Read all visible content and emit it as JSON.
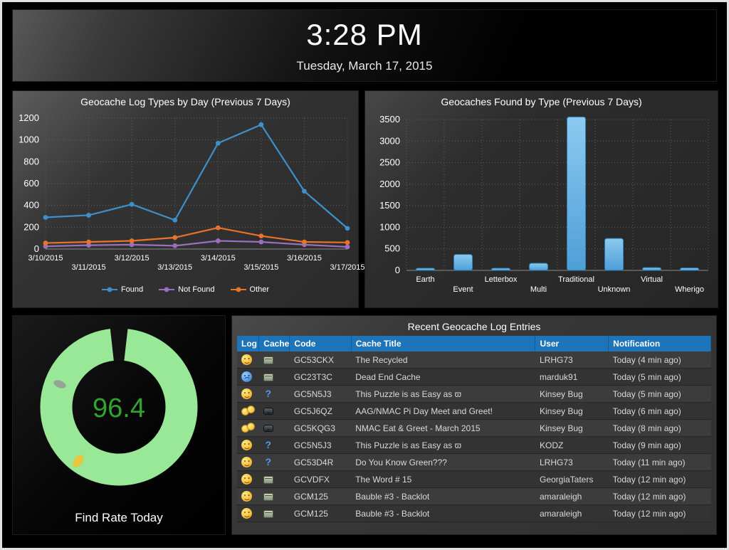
{
  "header": {
    "time": "3:28 PM",
    "date": "Tuesday, March 17, 2015"
  },
  "chart_data": [
    {
      "id": "log_types",
      "type": "line",
      "title": "Geocache Log Types by Day (Previous 7 Days)",
      "categories": [
        "3/10/2015",
        "3/11/2015",
        "3/12/2015",
        "3/13/2015",
        "3/14/2015",
        "3/15/2015",
        "3/16/2015",
        "3/17/2015"
      ],
      "series": [
        {
          "name": "Found",
          "color": "#3f8fc9",
          "values": [
            290,
            310,
            410,
            265,
            970,
            1140,
            530,
            190
          ]
        },
        {
          "name": "Not Found",
          "color": "#9a6fc0",
          "values": [
            25,
            35,
            40,
            30,
            75,
            65,
            40,
            20
          ]
        },
        {
          "name": "Other",
          "color": "#e8742a",
          "values": [
            55,
            65,
            75,
            105,
            195,
            120,
            65,
            60
          ]
        }
      ],
      "ylim": [
        0,
        1200
      ],
      "ytick": 200,
      "grid": true,
      "legend_position": "bottom"
    },
    {
      "id": "found_by_type",
      "type": "bar",
      "title": "Geocaches Found by Type (Previous 7 Days)",
      "categories": [
        "Earth",
        "Event",
        "Letterbox",
        "Multi",
        "Traditional",
        "Unknown",
        "Virtual",
        "Wherigo"
      ],
      "values": [
        50,
        370,
        50,
        165,
        3560,
        740,
        65,
        55
      ],
      "ylim": [
        0,
        3500
      ],
      "ytick": 500,
      "grid": true,
      "bar_fill_top": "#8ccaf0",
      "bar_fill_bottom": "#4e9fd7",
      "bar_stroke": "#2d7cb5"
    },
    {
      "id": "find_rate",
      "type": "donut",
      "title": "Find Rate Today",
      "value": 96.4,
      "value_label": "96.4",
      "value_color": "#2fa52f",
      "ring_color": "#98e898",
      "gap_color": "#121212",
      "marks": [
        {
          "name": "gray-mark",
          "color": "#99a298"
        },
        {
          "name": "yellow-mark",
          "color": "#e9c53d"
        }
      ]
    }
  ],
  "table": {
    "title": "Recent Geocache Log Entries",
    "columns": [
      "Log",
      "Cache",
      "Code",
      "Cache Title",
      "User",
      "Notification"
    ],
    "rows": [
      {
        "log_icon": "smiley",
        "cache_icon": "box",
        "code": "GC53CKX",
        "title": "The Recycled",
        "user": "LRHG73",
        "notification": "Today (4 min ago)"
      },
      {
        "log_icon": "frowny",
        "cache_icon": "box",
        "code": "GC23T3C",
        "title": "Dead End Cache",
        "user": "marduk91",
        "notification": "Today (5 min ago)"
      },
      {
        "log_icon": "smiley",
        "cache_icon": "question",
        "code": "GC5N5J3",
        "title": "This Puzzle is as Easy as ϖ",
        "user": "Kinsey Bug",
        "notification": "Today (5 min ago)"
      },
      {
        "log_icon": "event",
        "cache_icon": "bubble",
        "code": "GC5J6QZ",
        "title": "AAG/NMAC Pi Day Meet and Greet!",
        "user": "Kinsey Bug",
        "notification": "Today (6 min ago)"
      },
      {
        "log_icon": "event",
        "cache_icon": "bubble",
        "code": "GC5KQG3",
        "title": "NMAC Eat & Greet - March 2015",
        "user": "Kinsey Bug",
        "notification": "Today (8 min ago)"
      },
      {
        "log_icon": "smiley",
        "cache_icon": "question",
        "code": "GC5N5J3",
        "title": "This Puzzle is as Easy as ϖ",
        "user": "KODZ",
        "notification": "Today (9 min ago)"
      },
      {
        "log_icon": "smiley",
        "cache_icon": "question",
        "code": "GC53D4R",
        "title": "Do You Know Green???",
        "user": "LRHG73",
        "notification": "Today (11 min ago)"
      },
      {
        "log_icon": "smiley",
        "cache_icon": "box",
        "code": "GCVDFX",
        "title": "The Word # 15",
        "user": "GeorgiaTaters",
        "notification": "Today (12 min ago)"
      },
      {
        "log_icon": "smiley",
        "cache_icon": "box",
        "code": "GCM125",
        "title": "Bauble #3 - Backlot",
        "user": "amaraleigh",
        "notification": "Today (12 min ago)"
      },
      {
        "log_icon": "smiley",
        "cache_icon": "box",
        "code": "GCM125",
        "title": "Bauble #3 - Backlot",
        "user": "amaraleigh",
        "notification": "Today (12 min ago)"
      }
    ]
  },
  "colors": {
    "header_blue": "#1d74b8",
    "panel_dark": "#333333",
    "text_light": "#d9d9d9"
  }
}
